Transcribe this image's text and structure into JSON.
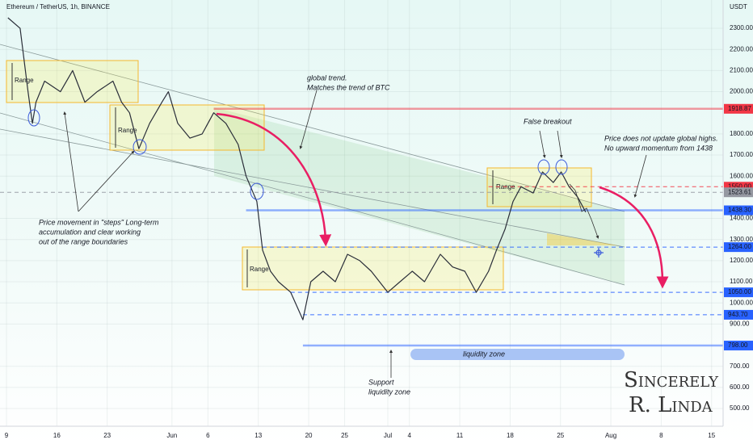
{
  "header": "Ethereum / TetherUS, 1h, BINANCE",
  "currency": "USDT",
  "chart_data": {
    "type": "line",
    "color": "#2a2e39",
    "x": [
      0.2,
      1.9,
      3,
      3.6,
      4.1,
      5.3,
      7.5,
      9.2,
      10.9,
      12.6,
      14.8,
      16,
      17.1,
      18.4,
      19.9,
      21.6,
      22.5,
      23.8,
      25.5,
      27.2,
      28.8,
      30.5,
      32.2,
      33.3,
      34.8,
      35.6,
      36.7,
      37.8,
      39.5,
      41.2,
      42.3,
      44,
      45.7,
      47.4,
      49.1,
      50.7,
      53,
      54.7,
      56.4,
      58.1,
      60.3,
      62,
      63.7,
      65.3,
      67,
      68.1,
      69.3,
      70.4,
      71.5,
      73.2,
      74.5,
      76,
      77.1,
      78.2,
      79.4,
      80.5
    ],
    "values": [
      2350,
      2300,
      2000,
      1850,
      1950,
      2050,
      2000,
      2100,
      1950,
      2000,
      2050,
      1950,
      1900,
      1730,
      1850,
      1950,
      2000,
      1850,
      1780,
      1800,
      1900,
      1850,
      1750,
      1600,
      1480,
      1250,
      1150,
      1100,
      1050,
      920,
      1100,
      1150,
      1100,
      1230,
      1200,
      1150,
      1050,
      1100,
      1150,
      1100,
      1230,
      1170,
      1150,
      1050,
      1150,
      1250,
      1350,
      1480,
      1550,
      1520,
      1620,
      1570,
      1620,
      1550,
      1500,
      1430
    ],
    "xlim": [
      -0.9,
      99.6
    ],
    "ylim": [
      416,
      2434
    ],
    "grid": true,
    "xticks": [
      {
        "value": 0,
        "label": "9"
      },
      {
        "value": 7,
        "label": "16"
      },
      {
        "value": 14,
        "label": "23"
      },
      {
        "value": 23,
        "label": "Jun"
      },
      {
        "value": 28,
        "label": "6"
      },
      {
        "value": 35,
        "label": "13"
      },
      {
        "value": 42,
        "label": "20"
      },
      {
        "value": 47,
        "label": "25"
      },
      {
        "value": 53,
        "label": "Jul"
      },
      {
        "value": 56,
        "label": "4"
      },
      {
        "value": 63,
        "label": "11"
      },
      {
        "value": 70,
        "label": "18"
      },
      {
        "value": 77,
        "label": "25"
      },
      {
        "value": 84,
        "label": "Aug"
      },
      {
        "value": 91,
        "label": "8"
      },
      {
        "value": 98,
        "label": "15"
      }
    ],
    "yticks": [
      {
        "value": 2300,
        "label": "2300.00"
      },
      {
        "value": 2200,
        "label": "2200.00"
      },
      {
        "value": 2100,
        "label": "2100.00"
      },
      {
        "value": 2000,
        "label": "2000.00"
      },
      {
        "value": 1800,
        "label": "1800.00"
      },
      {
        "value": 1700,
        "label": "1700.00"
      },
      {
        "value": 1600,
        "label": "1600.00"
      },
      {
        "value": 1400,
        "label": "1400.00"
      },
      {
        "value": 1300,
        "label": "1300.00"
      },
      {
        "value": 1200,
        "label": "1200.00"
      },
      {
        "value": 1100,
        "label": "1100.00"
      },
      {
        "value": 1000,
        "label": "1000.00"
      },
      {
        "value": 900,
        "label": "900.00"
      },
      {
        "value": 700,
        "label": "700.00"
      },
      {
        "value": 600,
        "label": "600.00"
      },
      {
        "value": 500,
        "label": "500.00"
      }
    ],
    "levels": [
      {
        "value": 1918.87,
        "label": "1918.87",
        "color": "#f23645",
        "dash": false,
        "from": 28.8
      },
      {
        "value": 1550,
        "label": "1550.00",
        "color": "#f23645",
        "dash": true,
        "from": 67
      },
      {
        "value": 1523.61,
        "label": "1523.61",
        "color": "#9598a1",
        "dash": true,
        "from": -0.9
      },
      {
        "value": 1438.3,
        "label": "1438.30",
        "color": "#2962ff",
        "dash": false,
        "from": 33.3
      },
      {
        "value": 1264,
        "label": "1264.00",
        "color": "#2962ff",
        "dash": true,
        "from": 35.6
      },
      {
        "value": 1050,
        "label": "1050.00",
        "color": "#2962ff",
        "dash": true,
        "from": 39.5
      },
      {
        "value": 943.7,
        "label": "943.70",
        "color": "#2962ff",
        "dash": true,
        "from": 41.2
      },
      {
        "value": 798,
        "label": "798.00",
        "color": "#2962ff",
        "dash": false,
        "from": 41.2
      }
    ]
  },
  "annotations": {
    "ranges": [
      "Range",
      "Range",
      "Range",
      "Range"
    ],
    "global_trend": [
      "global trend.",
      "Matches the trend of BTC"
    ],
    "false_breakout": "False breakout",
    "no_highs": [
      "Price does not update global highs.",
      "No upward momentum from 1438"
    ],
    "steps": [
      "Price movement in \"steps\" Long-term",
      "accumulation and clear working",
      "out of the range boundaries"
    ],
    "support": [
      "Support",
      "liquidity zone"
    ],
    "liquidity": "liquidity zone",
    "signature": [
      "Sincerely",
      "R. Linda"
    ]
  }
}
